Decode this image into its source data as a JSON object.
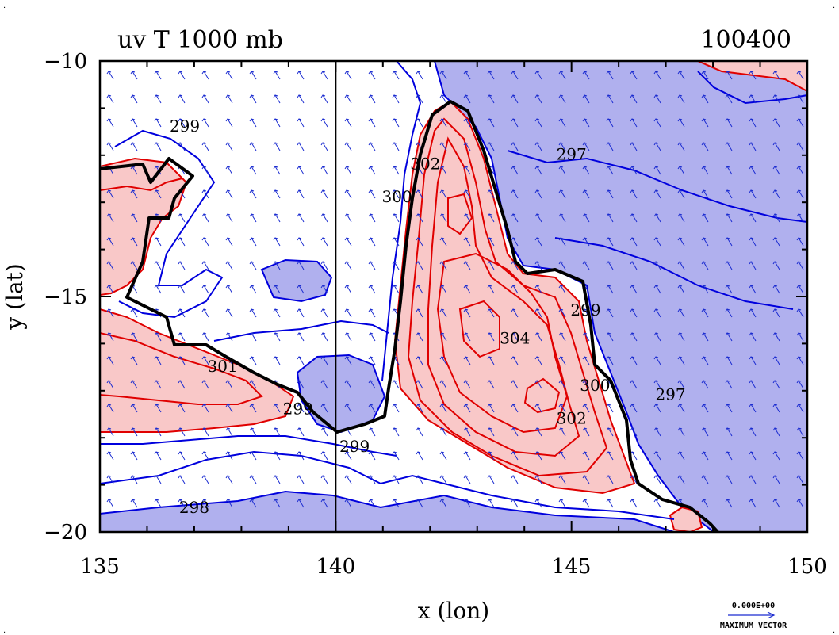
{
  "chart_data": {
    "type": "contour",
    "title_left": "uv T 1000 mb",
    "title_right": "100400",
    "xlabel": "x (lon)",
    "ylabel": "y (lat)",
    "xlim": [
      135,
      150
    ],
    "ylim": [
      -20,
      -10
    ],
    "x_ticks": [
      135,
      140,
      145,
      150
    ],
    "y_ticks": [
      -10,
      -15,
      -20
    ],
    "vertical_line_x": 140,
    "warm_fill_color": "#f9c8c8",
    "cold_fill_color": "#b0b0ee",
    "warm_line_color": "#e00000",
    "cold_line_color": "#0000dd",
    "vector_color": "#1a2bd0",
    "contour_labels": [
      {
        "text": "299",
        "lon": 136.8,
        "lat": -11.5
      },
      {
        "text": "297",
        "lon": 145.0,
        "lat": -12.1
      },
      {
        "text": "300",
        "lon": 141.3,
        "lat": -13.0
      },
      {
        "text": "302",
        "lon": 141.9,
        "lat": -12.3
      },
      {
        "text": "304",
        "lon": 143.8,
        "lat": -16.0
      },
      {
        "text": "299",
        "lon": 145.3,
        "lat": -15.4
      },
      {
        "text": "300",
        "lon": 145.5,
        "lat": -17.0
      },
      {
        "text": "302",
        "lon": 145.0,
        "lat": -17.7
      },
      {
        "text": "297",
        "lon": 147.1,
        "lat": -17.2
      },
      {
        "text": "301",
        "lon": 137.6,
        "lat": -16.6
      },
      {
        "text": "299",
        "lon": 139.2,
        "lat": -17.5
      },
      {
        "text": "299",
        "lon": 140.4,
        "lat": -18.3
      },
      {
        "text": "298",
        "lon": 137.0,
        "lat": -19.6
      }
    ],
    "vector_legend": {
      "value": "0.000E+00",
      "label": "MAXIMUM VECTOR"
    }
  }
}
